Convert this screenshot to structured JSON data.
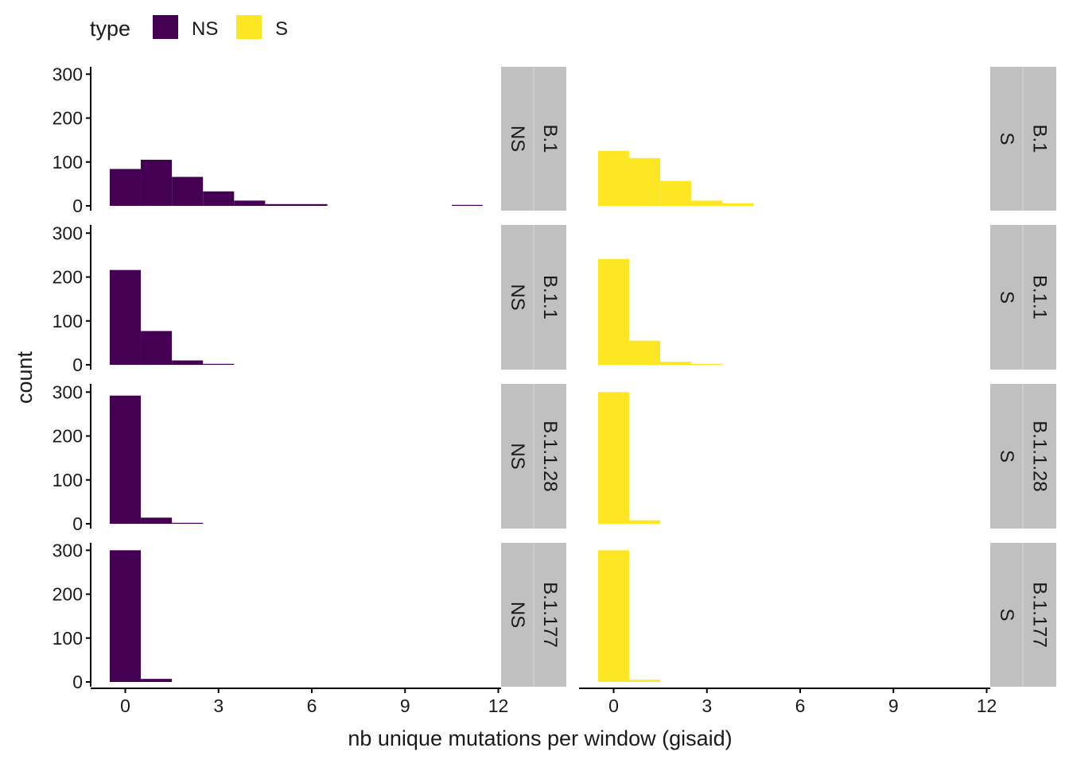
{
  "legend": {
    "title": "type",
    "entries": [
      {
        "label": "NS",
        "color": "#440154"
      },
      {
        "label": "S",
        "color": "#FDE725"
      }
    ]
  },
  "strip_color": "#c0c0c0",
  "chart_data": {
    "type": "bar",
    "subtype": "faceted-histogram",
    "xlabel": "nb unique mutations per window (gisaid)",
    "ylabel": "count",
    "xlim": [
      -0.5,
      12
    ],
    "ylim": [
      0,
      315
    ],
    "xticks": [
      0,
      3,
      6,
      9,
      12
    ],
    "yticks": [
      0,
      100,
      200,
      300
    ],
    "bin_width": 1,
    "bin_centers": [
      0,
      1,
      2,
      3,
      4,
      5,
      6,
      7,
      8,
      9,
      10,
      11
    ],
    "grid": false,
    "legend_position": "top-left",
    "columns": [
      "NS",
      "S"
    ],
    "rows": [
      "B.1",
      "B.1.1",
      "B.1.1.28",
      "B.1.177"
    ],
    "panels": [
      {
        "row": "B.1",
        "type": "NS",
        "values": [
          84,
          105,
          66,
          33,
          12,
          4,
          4,
          0,
          0,
          0,
          0,
          2
        ]
      },
      {
        "row": "B.1",
        "type": "S",
        "values": [
          125,
          109,
          57,
          12,
          6,
          0,
          0,
          0,
          0,
          0,
          0,
          0
        ]
      },
      {
        "row": "B.1.1",
        "type": "NS",
        "values": [
          216,
          77,
          10,
          2,
          0,
          0,
          0,
          0,
          0,
          0,
          0,
          0
        ]
      },
      {
        "row": "B.1.1",
        "type": "S",
        "values": [
          241,
          55,
          7,
          2,
          0,
          0,
          0,
          0,
          0,
          0,
          0,
          0
        ]
      },
      {
        "row": "B.1.1.28",
        "type": "NS",
        "values": [
          292,
          14,
          2,
          0,
          0,
          0,
          0,
          0,
          0,
          0,
          0,
          0
        ]
      },
      {
        "row": "B.1.1.28",
        "type": "S",
        "values": [
          300,
          8,
          0,
          0,
          0,
          0,
          0,
          0,
          0,
          0,
          0,
          0
        ]
      },
      {
        "row": "B.1.177",
        "type": "NS",
        "values": [
          300,
          7,
          0,
          0,
          0,
          0,
          0,
          0,
          0,
          0,
          0,
          0
        ]
      },
      {
        "row": "B.1.177",
        "type": "S",
        "values": [
          300,
          5,
          0,
          0,
          0,
          0,
          0,
          0,
          0,
          0,
          0,
          0
        ]
      }
    ]
  }
}
